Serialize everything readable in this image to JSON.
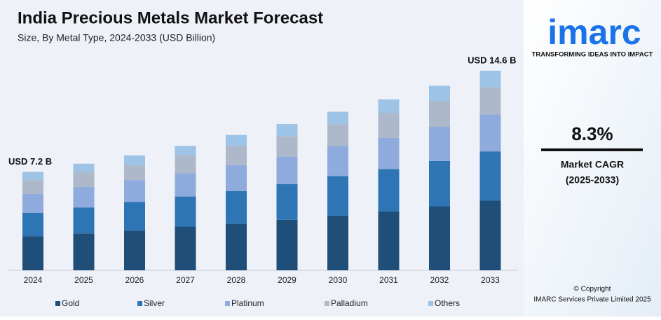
{
  "chart_data": {
    "type": "stacked_bar",
    "title": "India Precious Metals Market Forecast",
    "subtitle": "Size, By Metal Type, 2024-2033 (USD Billion)",
    "categories": [
      "2024",
      "2025",
      "2026",
      "2027",
      "2028",
      "2029",
      "2030",
      "2031",
      "2032",
      "2033"
    ],
    "series": [
      {
        "name": "Gold",
        "color": "#1f4e79",
        "values": [
          2.5,
          2.7,
          2.9,
          3.2,
          3.4,
          3.7,
          4.0,
          4.3,
          4.7,
          5.1
        ]
      },
      {
        "name": "Silver",
        "color": "#2e75b6",
        "values": [
          1.7,
          1.9,
          2.1,
          2.2,
          2.4,
          2.6,
          2.9,
          3.1,
          3.3,
          3.6
        ]
      },
      {
        "name": "Platinum",
        "color": "#8faadc",
        "values": [
          1.4,
          1.5,
          1.6,
          1.7,
          1.9,
          2.0,
          2.2,
          2.3,
          2.5,
          2.7
        ]
      },
      {
        "name": "Palladium",
        "color": "#adb9ca",
        "values": [
          1.0,
          1.1,
          1.1,
          1.3,
          1.4,
          1.5,
          1.6,
          1.8,
          1.9,
          2.0
        ]
      },
      {
        "name": "Others",
        "color": "#9dc3e6",
        "values": [
          0.6,
          0.6,
          0.7,
          0.7,
          0.8,
          0.9,
          0.9,
          1.0,
          1.1,
          1.2
        ]
      }
    ],
    "annotations": [
      "USD 7.2 B",
      "USD 14.6 B"
    ],
    "legend": "bottom"
  },
  "sidebar": {
    "logo": "imarc",
    "tagline": "TRANSFORMING IDEAS INTO IMPACT",
    "cagr": "8.3%",
    "cagr_label": "Market CAGR",
    "cagr_period": "(2025-2033)",
    "copyright": "© Copyright",
    "company": "IMARC Services Private Limited 2025"
  }
}
